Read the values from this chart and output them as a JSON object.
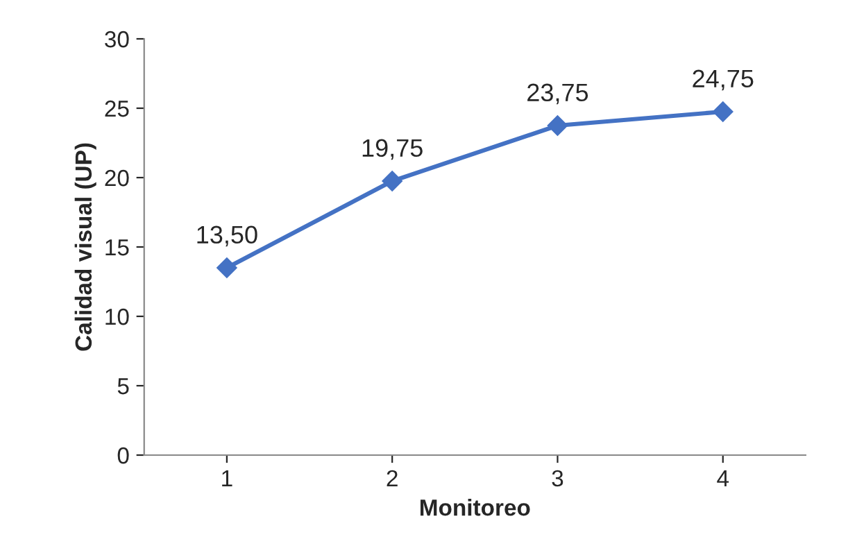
{
  "chart_data": {
    "type": "line",
    "xlabel": "Monitoreo",
    "ylabel": "Calidad visual (UP)",
    "categories": [
      "1",
      "2",
      "3",
      "4"
    ],
    "series": [
      {
        "color": "#4472c4",
        "values": [
          13.5,
          19.75,
          23.75,
          24.75
        ],
        "value_labels": [
          "13,50",
          "19,75",
          "23,75",
          "24,75"
        ]
      }
    ],
    "ylim": [
      0,
      30
    ],
    "yticks": [
      0,
      5,
      10,
      15,
      20,
      25,
      30
    ],
    "grid": false,
    "marker": "diamond",
    "line_style": "solid"
  }
}
